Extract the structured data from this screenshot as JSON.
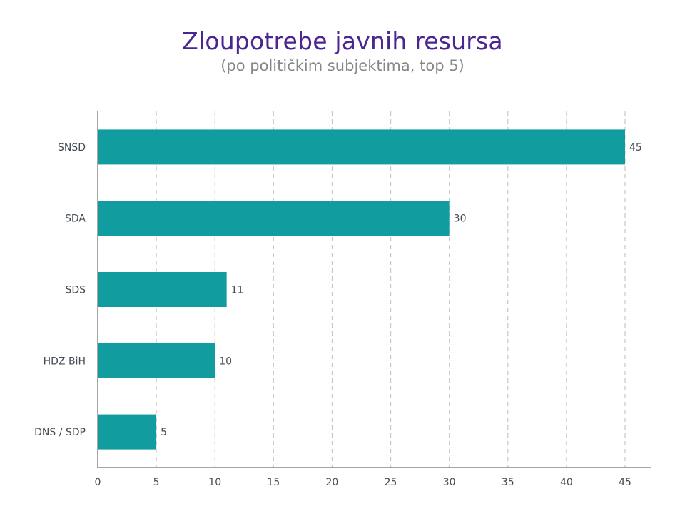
{
  "title": "Zloupotrebe javnih resursa",
  "subtitle": "(po političkim subjektima, top 5)",
  "chart_data": {
    "type": "bar",
    "orientation": "horizontal",
    "title": "Zloupotrebe javnih resursa",
    "subtitle": "(po političkim subjektima, top 5)",
    "categories": [
      "SNSD",
      "SDA",
      "SDS",
      "HDZ BiH",
      "DNS / SDP"
    ],
    "values": [
      45,
      30,
      11,
      10,
      5
    ],
    "data_labels": [
      "45",
      "30",
      "11",
      "10",
      "5"
    ],
    "xlim": [
      0,
      47
    ],
    "xticks": [
      0,
      5,
      10,
      15,
      20,
      25,
      30,
      35,
      40,
      45
    ],
    "xtick_labels": [
      "0",
      "5",
      "10",
      "15",
      "20",
      "25",
      "30",
      "35",
      "40",
      "45"
    ],
    "grid": "vertical-dashed",
    "legend": "none",
    "bar_color": "#119c9f",
    "title_color": "#4b2590",
    "subtitle_color": "#888888",
    "text_color": "#444b55",
    "grid_color": "#c8c8c8",
    "axis_color": "#888888"
  }
}
